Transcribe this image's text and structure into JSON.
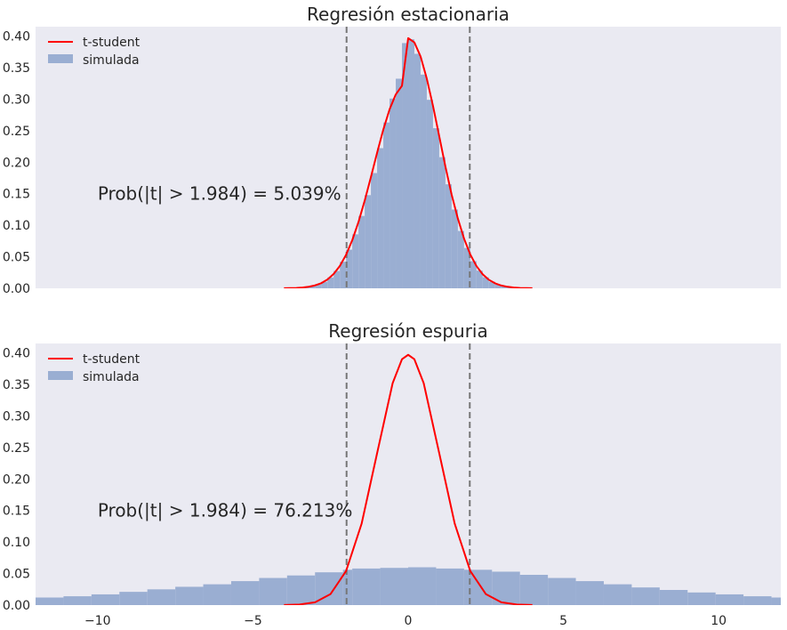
{
  "chart_data": [
    {
      "type": "bar",
      "title": "Regresión estacionaria",
      "annotation": {
        "text": "Prob(|t| > 1.984) = 5.039%",
        "x": -10,
        "y": 0.15
      },
      "xlim": [
        -12,
        12
      ],
      "ylim": [
        0,
        0.415
      ],
      "yticks": [
        0.0,
        0.05,
        0.1,
        0.15,
        0.2,
        0.25,
        0.3,
        0.35,
        0.4
      ],
      "ytick_labels": [
        "0.00",
        "0.05",
        "0.10",
        "0.15",
        "0.20",
        "0.25",
        "0.30",
        "0.35",
        "0.40"
      ],
      "xticks_shown": false,
      "grid": false,
      "legend": {
        "placement": "top-left",
        "entries": [
          "t-student",
          "simulada"
        ]
      },
      "vlines": [
        -1.984,
        1.984
      ],
      "series": [
        {
          "name": "t-student",
          "kind": "line",
          "color": "#ff0000",
          "x": [
            -4.0,
            -3.8,
            -3.6,
            -3.4,
            -3.2,
            -3.0,
            -2.8,
            -2.6,
            -2.4,
            -2.2,
            -2.0,
            -1.8,
            -1.6,
            -1.4,
            -1.2,
            -1.0,
            -0.8,
            -0.6,
            -0.4,
            -0.2,
            0.0,
            0.2,
            0.4,
            0.6,
            0.8,
            1.0,
            1.2,
            1.4,
            1.6,
            1.8,
            2.0,
            2.2,
            2.4,
            2.6,
            2.8,
            3.0,
            3.2,
            3.4,
            3.6,
            3.8,
            4.0
          ],
          "y": [
            0.0002,
            0.0003,
            0.0006,
            0.0013,
            0.0025,
            0.0046,
            0.0081,
            0.0139,
            0.0227,
            0.0355,
            0.0532,
            0.0764,
            0.1052,
            0.1391,
            0.1765,
            0.2151,
            0.2519,
            0.2837,
            0.3075,
            0.3212,
            0.3969,
            0.39,
            0.3677,
            0.3325,
            0.2893,
            0.2413,
            0.193,
            0.1486,
            0.1107,
            0.0788,
            0.0537,
            0.0352,
            0.0222,
            0.0135,
            0.0079,
            0.0044,
            0.0024,
            0.0012,
            0.0006,
            0.0003,
            0.0001
          ]
        },
        {
          "name": "simulada",
          "kind": "histogram",
          "color": "#9aaed2",
          "bin_edges": [
            -4.0,
            -3.8,
            -3.6,
            -3.4,
            -3.2,
            -3.0,
            -2.8,
            -2.6,
            -2.4,
            -2.2,
            -2.0,
            -1.8,
            -1.6,
            -1.4,
            -1.2,
            -1.0,
            -0.8,
            -0.6,
            -0.4,
            -0.2,
            0.0,
            0.2,
            0.4,
            0.6,
            0.8,
            1.0,
            1.2,
            1.4,
            1.6,
            1.8,
            2.0,
            2.2,
            2.4,
            2.6,
            2.8,
            3.0,
            3.2,
            3.4,
            3.6,
            3.8,
            4.0
          ],
          "values": [
            0.0002,
            0.0004,
            0.0008,
            0.0016,
            0.0032,
            0.0058,
            0.0103,
            0.0172,
            0.0275,
            0.0421,
            0.0613,
            0.0856,
            0.1148,
            0.1478,
            0.1828,
            0.2223,
            0.263,
            0.301,
            0.3325,
            0.389,
            0.395,
            0.372,
            0.339,
            0.299,
            0.254,
            0.208,
            0.165,
            0.125,
            0.091,
            0.064,
            0.043,
            0.028,
            0.0175,
            0.0105,
            0.006,
            0.0033,
            0.0018,
            0.0009,
            0.0004,
            0.0002
          ]
        }
      ]
    },
    {
      "type": "bar",
      "title": "Regresión espuria",
      "annotation": {
        "text": "Prob(|t| > 1.984) = 76.213%",
        "x": -10,
        "y": 0.15
      },
      "xlim": [
        -12,
        12
      ],
      "ylim": [
        0,
        0.415
      ],
      "yticks": [
        0.0,
        0.05,
        0.1,
        0.15,
        0.2,
        0.25,
        0.3,
        0.35,
        0.4
      ],
      "ytick_labels": [
        "0.00",
        "0.05",
        "0.10",
        "0.15",
        "0.20",
        "0.25",
        "0.30",
        "0.35",
        "0.40"
      ],
      "xticks": [
        -10,
        -5,
        0,
        5,
        10
      ],
      "xtick_labels": [
        "−10",
        "−5",
        "0",
        "5",
        "10"
      ],
      "grid": false,
      "legend": {
        "placement": "top-left",
        "entries": [
          "t-student",
          "simulada"
        ]
      },
      "vlines": [
        -1.984,
        1.984
      ],
      "series": [
        {
          "name": "t-student",
          "kind": "line",
          "color": "#ff0000",
          "x": [
            -4.0,
            -3.5,
            -3.0,
            -2.5,
            -2.0,
            -1.5,
            -1.0,
            -0.5,
            -0.2,
            0.0,
            0.2,
            0.5,
            1.0,
            1.5,
            2.0,
            2.5,
            3.0,
            3.5,
            4.0
          ],
          "y": [
            0.0002,
            0.0009,
            0.0044,
            0.0175,
            0.054,
            0.129,
            0.241,
            0.352,
            0.39,
            0.397,
            0.39,
            0.352,
            0.241,
            0.129,
            0.054,
            0.0175,
            0.0044,
            0.0009,
            0.0002
          ]
        },
        {
          "name": "simulada",
          "kind": "histogram",
          "color": "#9aaed2",
          "bin_edges": [
            -12.0,
            -11.1,
            -10.2,
            -9.3,
            -8.4,
            -7.5,
            -6.6,
            -5.7,
            -4.8,
            -3.9,
            -3.0,
            -2.1,
            -1.8,
            -0.9,
            0.0,
            0.9,
            1.8,
            2.7,
            3.6,
            4.5,
            5.4,
            6.3,
            7.2,
            8.1,
            9.0,
            9.9,
            10.8,
            11.7,
            12.0
          ],
          "values": [
            0.012,
            0.014,
            0.017,
            0.021,
            0.025,
            0.029,
            0.033,
            0.038,
            0.043,
            0.047,
            0.052,
            0.056,
            0.058,
            0.059,
            0.06,
            0.058,
            0.056,
            0.053,
            0.048,
            0.043,
            0.038,
            0.033,
            0.028,
            0.024,
            0.02,
            0.017,
            0.014,
            0.012
          ]
        }
      ]
    }
  ]
}
